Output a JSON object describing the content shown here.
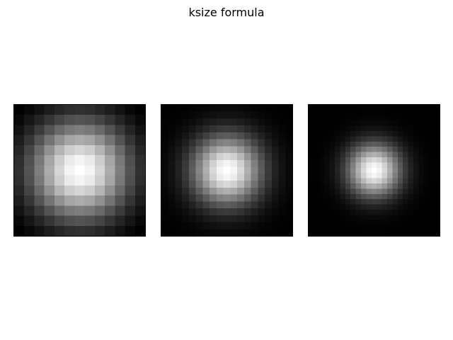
{
  "chart_data": [
    {
      "type": "heatmap",
      "colormap": "gray",
      "grid": false,
      "axes_visible": false,
      "kernel_size": 13,
      "sigma": 3.5
    },
    {
      "type": "heatmap",
      "colormap": "gray",
      "grid": false,
      "axes_visible": false,
      "kernel_size": 19,
      "sigma": 3.5
    },
    {
      "type": "heatmap",
      "colormap": "gray",
      "grid": false,
      "axes_visible": false,
      "kernel_size": 25,
      "sigma": 3.5
    }
  ],
  "figure": {
    "title": "ksize formula"
  }
}
